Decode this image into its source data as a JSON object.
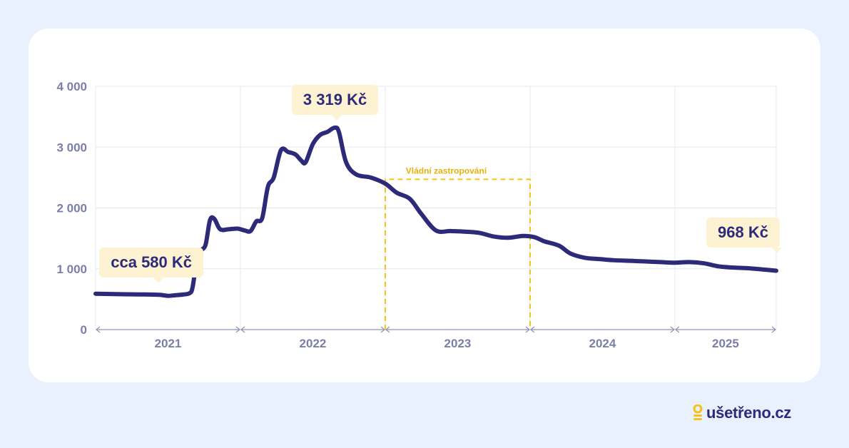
{
  "chart_data": {
    "type": "line",
    "y_ticks": [
      {
        "value": 0,
        "label": "0"
      },
      {
        "value": 1000,
        "label": "1 000"
      },
      {
        "value": 2000,
        "label": "2 000"
      },
      {
        "value": 3000,
        "label": "3 000"
      },
      {
        "value": 4000,
        "label": "4 000"
      }
    ],
    "ylim": [
      0,
      4000
    ],
    "x_domain": [
      2021.0,
      2025.7
    ],
    "year_labels": [
      {
        "label": "2021",
        "start": 2021.0,
        "end": 2022.0
      },
      {
        "label": "2022",
        "start": 2022.0,
        "end": 2023.0
      },
      {
        "label": "2023",
        "start": 2023.0,
        "end": 2024.0
      },
      {
        "label": "2024",
        "start": 2024.0,
        "end": 2025.0
      },
      {
        "label": "2025",
        "start": 2025.0,
        "end": 2025.7
      }
    ],
    "grid": true,
    "series": [
      {
        "color": "#2e2a7a",
        "points": [
          [
            2021.0,
            590
          ],
          [
            2021.1,
            585
          ],
          [
            2021.2,
            580
          ],
          [
            2021.3,
            578
          ],
          [
            2021.4,
            575
          ],
          [
            2021.45,
            570
          ],
          [
            2021.5,
            555
          ],
          [
            2021.55,
            565
          ],
          [
            2021.6,
            575
          ],
          [
            2021.65,
            600
          ],
          [
            2021.67,
            700
          ],
          [
            2021.7,
            1150
          ],
          [
            2021.73,
            1300
          ],
          [
            2021.76,
            1400
          ],
          [
            2021.79,
            1800
          ],
          [
            2021.82,
            1820
          ],
          [
            2021.86,
            1650
          ],
          [
            2021.92,
            1650
          ],
          [
            2021.98,
            1660
          ],
          [
            2022.03,
            1630
          ],
          [
            2022.07,
            1620
          ],
          [
            2022.11,
            1780
          ],
          [
            2022.15,
            1830
          ],
          [
            2022.19,
            2350
          ],
          [
            2022.23,
            2500
          ],
          [
            2022.28,
            2950
          ],
          [
            2022.33,
            2920
          ],
          [
            2022.38,
            2880
          ],
          [
            2022.42,
            2780
          ],
          [
            2022.45,
            2750
          ],
          [
            2022.5,
            3050
          ],
          [
            2022.55,
            3200
          ],
          [
            2022.6,
            3250
          ],
          [
            2022.65,
            3319
          ],
          [
            2022.68,
            3250
          ],
          [
            2022.73,
            2750
          ],
          [
            2022.8,
            2550
          ],
          [
            2022.9,
            2500
          ],
          [
            2023.0,
            2400
          ],
          [
            2023.08,
            2250
          ],
          [
            2023.17,
            2150
          ],
          [
            2023.25,
            1900
          ],
          [
            2023.35,
            1630
          ],
          [
            2023.45,
            1620
          ],
          [
            2023.55,
            1610
          ],
          [
            2023.65,
            1590
          ],
          [
            2023.75,
            1530
          ],
          [
            2023.85,
            1510
          ],
          [
            2023.95,
            1540
          ],
          [
            2024.03,
            1520
          ],
          [
            2024.1,
            1450
          ],
          [
            2024.2,
            1380
          ],
          [
            2024.28,
            1250
          ],
          [
            2024.38,
            1180
          ],
          [
            2024.48,
            1160
          ],
          [
            2024.58,
            1140
          ],
          [
            2024.7,
            1130
          ],
          [
            2024.8,
            1120
          ],
          [
            2024.9,
            1110
          ],
          [
            2025.0,
            1100
          ],
          [
            2025.1,
            1110
          ],
          [
            2025.2,
            1090
          ],
          [
            2025.3,
            1040
          ],
          [
            2025.4,
            1020
          ],
          [
            2025.5,
            1010
          ],
          [
            2025.6,
            990
          ],
          [
            2025.7,
            968
          ]
        ]
      }
    ],
    "annotations": [
      {
        "label": "cca 580 Kč",
        "x": 2021.42,
        "y": 580
      },
      {
        "label": "3 319 Kč",
        "x": 2022.65,
        "y": 3319
      },
      {
        "label": "968 Kč",
        "x": 2025.7,
        "y": 968
      }
    ],
    "range_box": {
      "label": "Vládní zastropování",
      "x_start": 2023.0,
      "x_end": 2024.0,
      "y_top": 2470,
      "color": "#f6c21a"
    }
  },
  "colors": {
    "line": "#2e2a7a",
    "axis_text": "#7b7fa6",
    "grid": "#e6e8ef",
    "highlight": "#f6c21a",
    "callout_bg": "#fdf3d3"
  },
  "logo": {
    "text": "ušetřeno.cz",
    "icon": "coin-stack-icon"
  }
}
